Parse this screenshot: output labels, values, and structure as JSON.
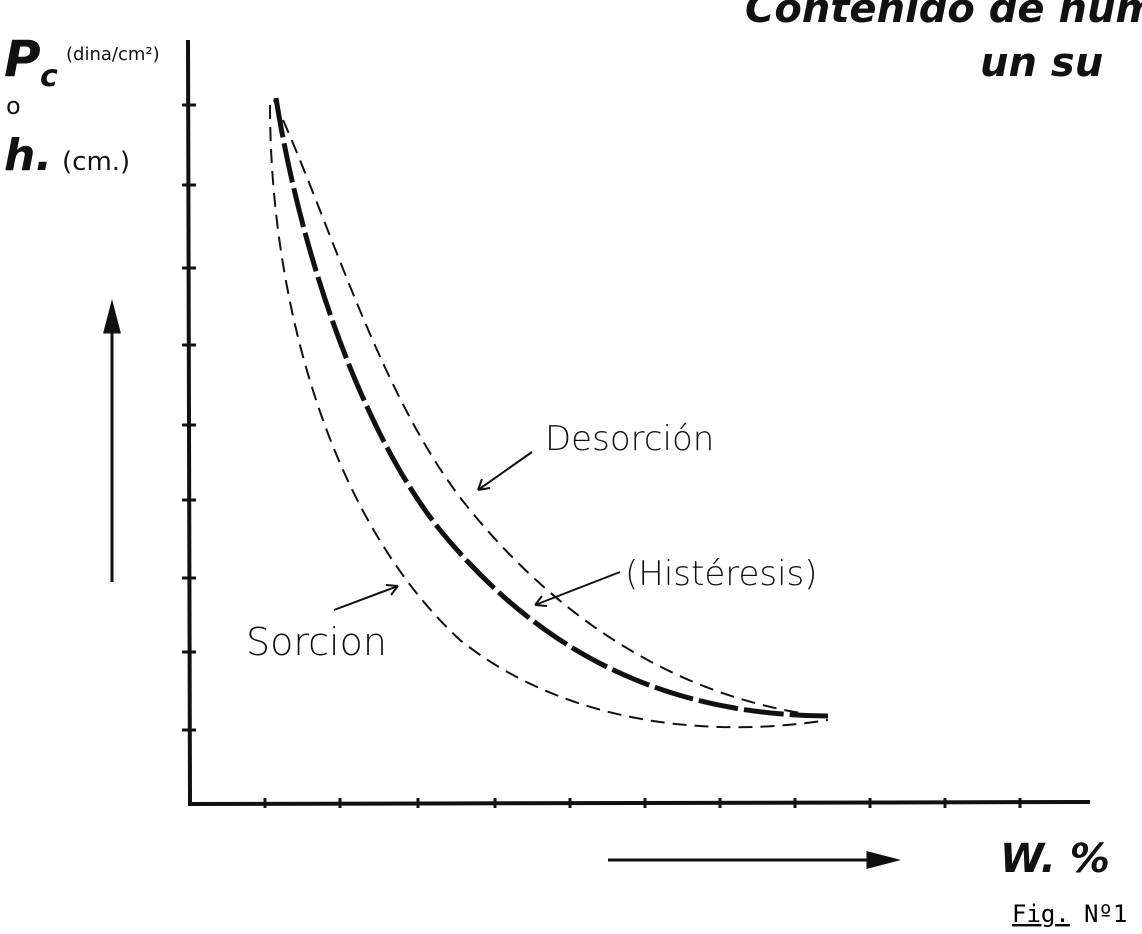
{
  "title": {
    "line1": "Contenido de humedad",
    "line2": "un su"
  },
  "y_axis": {
    "symbol": "P",
    "subscript": "c",
    "unit": "(dina/cm²)",
    "or": "o",
    "alt_symbol": "h.",
    "alt_unit": "(cm.)"
  },
  "x_axis": {
    "label": "W. %"
  },
  "curves": {
    "desorption": "Desorción",
    "hysteresis": "(Histéresis)",
    "sorption": "Sorcion"
  },
  "figure": {
    "label": "Fig.",
    "number": "Nº1"
  }
}
